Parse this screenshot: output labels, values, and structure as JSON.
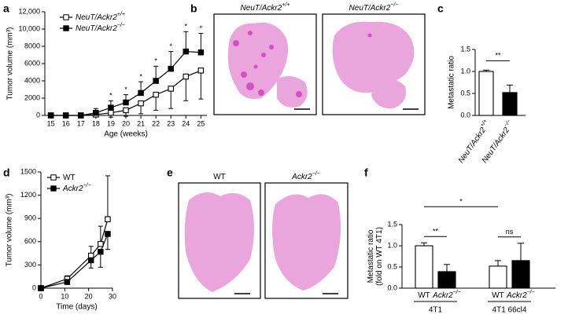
{
  "chart_data": [
    {
      "type": "line",
      "panel_label": "a",
      "xlabel": "Age (weeks)",
      "ylabel": "Tumor volume (mm³)",
      "x": [
        15,
        16,
        17,
        18,
        19,
        20,
        21,
        22,
        23,
        24,
        25
      ],
      "xlim": [
        14.6,
        25.4
      ],
      "xticks": [
        15,
        16,
        17,
        18,
        19,
        20,
        21,
        22,
        23,
        24,
        25
      ],
      "ylim": [
        0,
        12000
      ],
      "yticks": [
        0,
        2000,
        4000,
        6000,
        8000,
        {
          "value": 10000,
          "label": "10,000"
        },
        {
          "value": 12000,
          "label": "12,000"
        }
      ],
      "series": [
        {
          "name": "NeuT/Ackr2",
          "sup": "+/+",
          "color": "#000000",
          "marker": "open",
          "error_direction": "down",
          "values": [
            0,
            0,
            0,
            100,
            300,
            600,
            1400,
            2400,
            3100,
            4500,
            5200
          ],
          "errors": [
            0,
            0,
            0,
            200,
            500,
            700,
            1200,
            1800,
            2300,
            2800,
            3300
          ]
        },
        {
          "name": "NeuT/Ackr2",
          "sup": "−/−",
          "color": "#000000",
          "marker": "filled",
          "error_direction": "up",
          "values": [
            0,
            0,
            0,
            300,
            900,
            1500,
            2600,
            4000,
            5400,
            7400,
            7300
          ],
          "errors": [
            0,
            0,
            0,
            500,
            800,
            900,
            1300,
            1700,
            2000,
            2300,
            2200
          ]
        }
      ],
      "annotations": [
        {
          "x": 19,
          "text": "*"
        },
        {
          "x": 20,
          "text": "*"
        },
        {
          "x": 21,
          "text": "*"
        },
        {
          "x": 22,
          "text": "*"
        },
        {
          "x": 23,
          "text": "*"
        },
        {
          "x": 24,
          "text": "*"
        },
        {
          "x": 25,
          "text": "*"
        }
      ]
    },
    {
      "type": "bar",
      "panel_label": "c",
      "ylabel": [
        "Metastatic ratio"
      ],
      "categories": [
        {
          "name": "NeuT/Ackr2",
          "sup": "+/+"
        },
        {
          "name": "NeuT/Ackr2",
          "sup": "−/−"
        }
      ],
      "values": [
        1.0,
        0.52
      ],
      "errors": [
        0.03,
        0.17
      ],
      "colors": [
        "#ffffff",
        "#000000"
      ],
      "ylim": [
        0,
        1.5
      ],
      "yticks": [
        {
          "value": 0,
          "label": "0.0"
        },
        {
          "value": 0.5,
          "label": "0.5"
        },
        {
          "value": 1,
          "label": "1.0"
        },
        {
          "value": 1.5,
          "label": "1.5"
        }
      ],
      "significance": [
        {
          "from": 0,
          "to": 1,
          "text": "**"
        }
      ]
    },
    {
      "type": "line",
      "panel_label": "d",
      "xlabel": "Time (days)",
      "ylabel": "Tumor volume (mm³)",
      "x": [
        0,
        11,
        21,
        25,
        28
      ],
      "xlim": [
        0,
        30
      ],
      "xticks": [
        0,
        10,
        20,
        30
      ],
      "ylim": [
        0,
        1500
      ],
      "yticks": [
        0,
        300,
        600,
        900,
        1200,
        1500
      ],
      "series": [
        {
          "name": "WT",
          "color": "#000000",
          "marker": "open",
          "error_direction": "up",
          "values": [
            0,
            120,
            420,
            570,
            890
          ],
          "errors": [
            0,
            40,
            120,
            230,
            560
          ]
        },
        {
          "name": "Ackr2",
          "sup": "−/−",
          "color": "#000000",
          "marker": "filled",
          "error_direction": "down",
          "values": [
            0,
            80,
            360,
            470,
            700
          ],
          "errors": [
            0,
            30,
            100,
            200,
            200
          ]
        }
      ],
      "annotations": []
    },
    {
      "type": "bar",
      "panel_label": "f",
      "ylabel": [
        "Metastatic ratio",
        "(fold on WT 4T1)"
      ],
      "categories": [
        {
          "name": "WT"
        },
        {
          "name": "Ackr2",
          "sup": "−/−"
        },
        {
          "name": "WT"
        },
        {
          "name": "Ackr2",
          "sup": "−/−"
        }
      ],
      "groups": [
        {
          "label": "4T1",
          "from": 0,
          "to": 1
        },
        {
          "label": "4T1 66cl4",
          "from": 2,
          "to": 3
        }
      ],
      "values": [
        1.0,
        0.39,
        0.52,
        0.65
      ],
      "errors": [
        0.07,
        0.17,
        0.13,
        0.41
      ],
      "colors": [
        "#ffffff",
        "#000000",
        "#ffffff",
        "#000000"
      ],
      "ylim": [
        0,
        1.5
      ],
      "yticks": [
        {
          "value": 0,
          "label": "0.0"
        },
        {
          "value": 0.5,
          "label": "0.5"
        },
        {
          "value": 1,
          "label": "1.0"
        },
        {
          "value": 1.5,
          "label": "1.5"
        }
      ],
      "significance": [
        {
          "from": 0,
          "to": 1,
          "text": "**"
        },
        {
          "from": 0,
          "to": 2,
          "text": "*"
        },
        {
          "from": 2,
          "to": 3,
          "text": "ns"
        }
      ]
    }
  ],
  "image_panels": [
    {
      "panel_label": "b",
      "images": [
        {
          "name": "NeuT/Ackr2",
          "sup": "+/+"
        },
        {
          "name": "NeuT/Ackr2",
          "sup": "−/−"
        }
      ]
    },
    {
      "panel_label": "e",
      "images": [
        {
          "name": "WT"
        },
        {
          "name": "Ackr2",
          "sup": "−/−"
        }
      ]
    }
  ]
}
